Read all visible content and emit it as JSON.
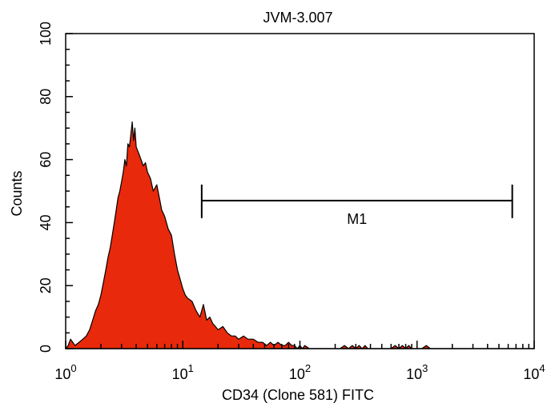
{
  "chart_data": {
    "type": "area",
    "title": "JVM-3.007",
    "xlabel": "CD34 (Clone 581) FITC",
    "ylabel": "Counts",
    "x_scale": "log",
    "xlim": [
      1,
      10000
    ],
    "ylim": [
      0,
      100
    ],
    "y_ticks": [
      "0",
      "20",
      "40",
      "60",
      "80",
      "100"
    ],
    "x_ticks": [
      {
        "base": "10",
        "exp": "0"
      },
      {
        "base": "10",
        "exp": "1"
      },
      {
        "base": "10",
        "exp": "2"
      },
      {
        "base": "10",
        "exp": "3"
      },
      {
        "base": "10",
        "exp": "4"
      }
    ],
    "fill_color": "#e8290b",
    "histogram": {
      "x": [
        1.0,
        1.05,
        1.1,
        1.15,
        1.2,
        1.3,
        1.4,
        1.5,
        1.6,
        1.7,
        1.8,
        1.9,
        2.0,
        2.1,
        2.2,
        2.3,
        2.4,
        2.5,
        2.6,
        2.7,
        2.8,
        2.9,
        3.0,
        3.1,
        3.2,
        3.3,
        3.4,
        3.5,
        3.6,
        3.7,
        3.8,
        3.9,
        4.0,
        4.2,
        4.4,
        4.6,
        4.8,
        5.0,
        5.3,
        5.6,
        6.0,
        6.3,
        6.6,
        7.0,
        7.5,
        8.0,
        8.5,
        9.0,
        9.5,
        10,
        10.5,
        11,
        12,
        13,
        14,
        15,
        16,
        17,
        18,
        19,
        20,
        22,
        24,
        26,
        28,
        30,
        33,
        36,
        40,
        44,
        48,
        52,
        56,
        60,
        65,
        70,
        75,
        80,
        85,
        90,
        95,
        100,
        105,
        110,
        120,
        130,
        140,
        150,
        160,
        170,
        180,
        200,
        220,
        240,
        260,
        280,
        300,
        320,
        340,
        360,
        380,
        400,
        450,
        500,
        550,
        600,
        650,
        700,
        750,
        800,
        850,
        900,
        1000,
        1100,
        1200,
        1300,
        1500,
        2000,
        3000,
        5000,
        10000
      ],
      "y": [
        0,
        1,
        3,
        2,
        1,
        2,
        3,
        4,
        6,
        9,
        12,
        14,
        17,
        21,
        25,
        29,
        32,
        36,
        40,
        44,
        48,
        50,
        53,
        56,
        60,
        58,
        65,
        64,
        68,
        72,
        66,
        70,
        64,
        62,
        60,
        58,
        59,
        56,
        54,
        50,
        52,
        48,
        44,
        42,
        38,
        36,
        30,
        25,
        22,
        19,
        17,
        16,
        15,
        12,
        10,
        14,
        9,
        10,
        8,
        7,
        6,
        7,
        5,
        4,
        4,
        3,
        4,
        3,
        3,
        2,
        2,
        1,
        2,
        1,
        2,
        1,
        1,
        2,
        1,
        1,
        0,
        1,
        0,
        1,
        0,
        0,
        0,
        0,
        0,
        0,
        0,
        0,
        0,
        1,
        0,
        1,
        0,
        1,
        0,
        1,
        0,
        0,
        0,
        0,
        0,
        0,
        1,
        0,
        1,
        0,
        1,
        0,
        0,
        0,
        1,
        0,
        0,
        0,
        0,
        0,
        0
      ]
    },
    "marker": {
      "label": "M1",
      "x_start": 14.5,
      "x_end": 6500,
      "y": 47
    }
  }
}
